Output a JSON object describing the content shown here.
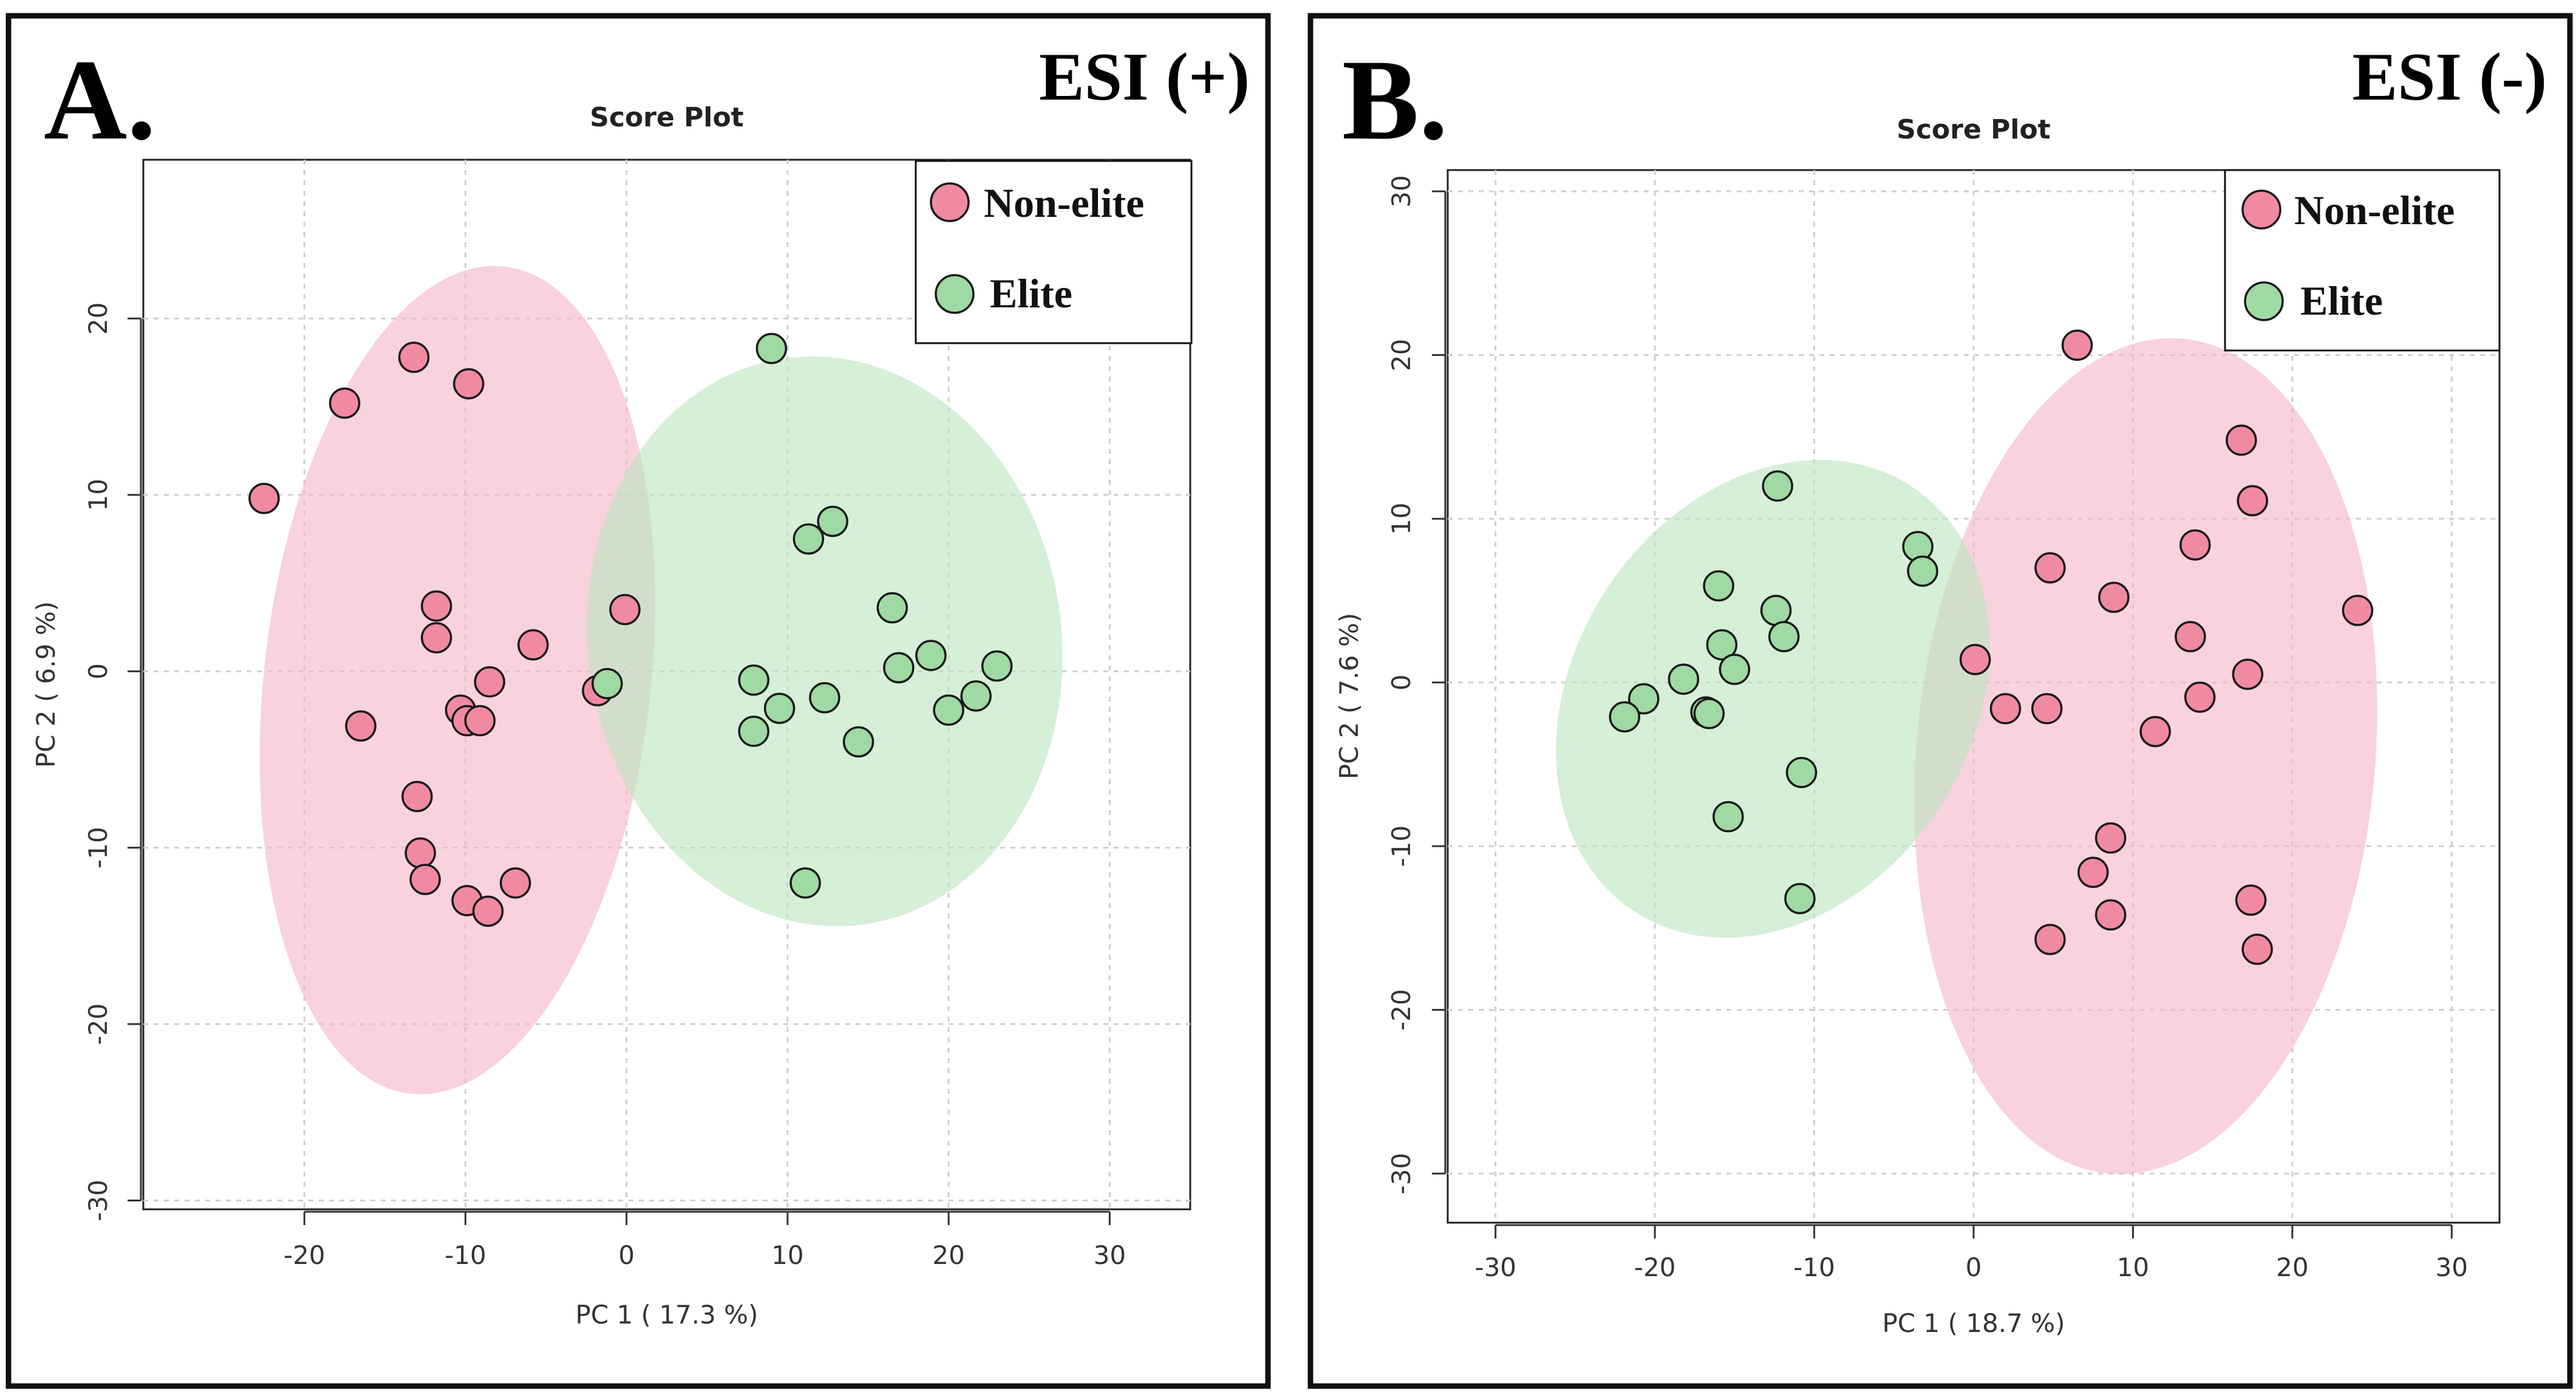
{
  "chart_data": [
    {
      "type": "scatter",
      "panel_label": "A.",
      "ionization_mode": "ESI (+)",
      "title": "Score   Plot",
      "xlabel": "PC 1 ( 17.3 %)",
      "ylabel": "PC 2 ( 6.9 %)",
      "xlim": [
        -30,
        35
      ],
      "ylim": [
        -30.5,
        29
      ],
      "xticks": [
        -20,
        -10,
        0,
        10,
        20,
        30
      ],
      "yticks": [
        -30,
        -20,
        -10,
        0,
        10,
        20
      ],
      "grid": true,
      "legend_position": "top-right",
      "series": [
        {
          "name": "Non-elite",
          "color": "#f08aa2",
          "ellipse_color": "#f4b6c6",
          "ellipse": {
            "cx": -10.5,
            "cy": -0.5,
            "rx": 12.0,
            "ry": 23.6,
            "angle": 6.5
          },
          "points": [
            [
              -22.5,
              9.8
            ],
            [
              -17.5,
              15.2
            ],
            [
              -13.2,
              17.8
            ],
            [
              -9.8,
              16.3
            ],
            [
              -11.8,
              3.7
            ],
            [
              -11.8,
              1.9
            ],
            [
              -5.8,
              1.5
            ],
            [
              -8.5,
              -0.6
            ],
            [
              -16.5,
              -3.1
            ],
            [
              -10.3,
              -2.2
            ],
            [
              -9.9,
              -2.8
            ],
            [
              -9.1,
              -2.8
            ],
            [
              -13.0,
              -7.1
            ],
            [
              -12.8,
              -10.3
            ],
            [
              -12.5,
              -11.8
            ],
            [
              -9.9,
              -13.0
            ],
            [
              -8.6,
              -13.6
            ],
            [
              -6.9,
              -12.0
            ],
            [
              -1.8,
              -1.1
            ],
            [
              -0.1,
              3.5
            ]
          ]
        },
        {
          "name": "Elite",
          "color": "#9fd9a3",
          "ellipse_color": "#bde5bf",
          "ellipse": {
            "cx": 12.3,
            "cy": 1.7,
            "rx": 14.7,
            "ry": 16.2,
            "angle": -8
          },
          "points": [
            [
              9.0,
              18.3
            ],
            [
              11.3,
              7.5
            ],
            [
              12.8,
              8.5
            ],
            [
              16.5,
              3.6
            ],
            [
              7.9,
              -0.5
            ],
            [
              9.5,
              -2.1
            ],
            [
              12.3,
              -1.5
            ],
            [
              7.9,
              -3.4
            ],
            [
              14.4,
              -4.0
            ],
            [
              16.9,
              0.2
            ],
            [
              18.9,
              0.9
            ],
            [
              20.0,
              -2.2
            ],
            [
              21.7,
              -1.4
            ],
            [
              23.0,
              0.3
            ],
            [
              11.1,
              -12.0
            ],
            [
              -1.2,
              -0.7
            ]
          ]
        }
      ]
    },
    {
      "type": "scatter",
      "panel_label": "B.",
      "ionization_mode": "ESI (-)",
      "title": "Score   Plot",
      "xlabel": "PC 1 ( 18.7 %)",
      "ylabel": "PC 2 ( 7.6 %)",
      "xlim": [
        -33,
        33
      ],
      "ylim": [
        -33,
        31.3
      ],
      "xticks": [
        -30,
        -20,
        -10,
        0,
        10,
        20,
        30
      ],
      "yticks": [
        -30,
        -20,
        -10,
        0,
        10,
        20,
        30
      ],
      "grid": true,
      "legend_position": "top-right",
      "series": [
        {
          "name": "Non-elite",
          "color": "#f08aa2",
          "ellipse_color": "#f4b6c6",
          "ellipse": {
            "cx": 10.8,
            "cy": -4.5,
            "rx": 14.4,
            "ry": 25.6,
            "angle": 5
          },
          "points": [
            [
              6.5,
              20.6
            ],
            [
              16.8,
              14.8
            ],
            [
              17.5,
              11.1
            ],
            [
              13.9,
              8.4
            ],
            [
              4.8,
              7.0
            ],
            [
              8.8,
              5.2
            ],
            [
              24.1,
              4.4
            ],
            [
              13.6,
              2.8
            ],
            [
              0.1,
              1.4
            ],
            [
              17.2,
              0.5
            ],
            [
              2.0,
              -1.6
            ],
            [
              4.6,
              -1.6
            ],
            [
              14.2,
              -0.9
            ],
            [
              11.4,
              -3.0
            ],
            [
              8.6,
              -9.5
            ],
            [
              7.5,
              -11.6
            ],
            [
              8.6,
              -14.2
            ],
            [
              17.4,
              -13.3
            ],
            [
              4.8,
              -15.7
            ],
            [
              17.8,
              -16.3
            ]
          ]
        },
        {
          "name": "Elite",
          "color": "#9fd9a3",
          "ellipse_color": "#bde5bf",
          "ellipse": {
            "cx": -12.6,
            "cy": -1.0,
            "rx": 12.5,
            "ry": 15.5,
            "angle": 33
          },
          "points": [
            [
              -12.3,
              12.0
            ],
            [
              -16.0,
              5.9
            ],
            [
              -12.4,
              4.4
            ],
            [
              -11.9,
              2.8
            ],
            [
              -15.8,
              2.3
            ],
            [
              -15.0,
              0.8
            ],
            [
              -18.2,
              0.2
            ],
            [
              -20.7,
              -1.0
            ],
            [
              -21.9,
              -2.1
            ],
            [
              -16.8,
              -1.8
            ],
            [
              -16.6,
              -1.9
            ],
            [
              -10.8,
              -5.5
            ],
            [
              -15.4,
              -8.2
            ],
            [
              -10.9,
              -13.2
            ],
            [
              -3.5,
              8.3
            ],
            [
              -3.2,
              6.8
            ]
          ]
        }
      ]
    }
  ]
}
